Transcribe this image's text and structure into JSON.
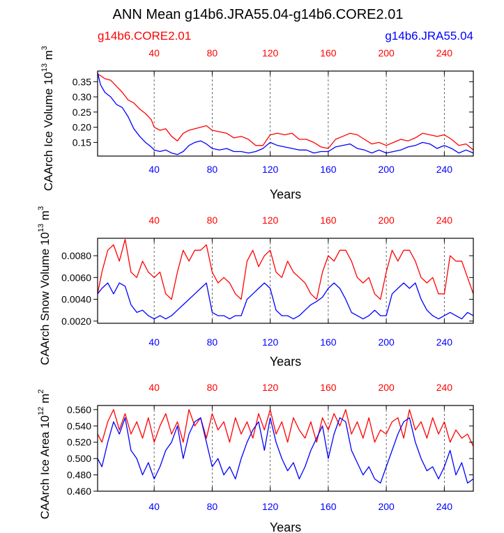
{
  "figure": {
    "title": "ANN Mean g14b6.JRA55.04-g14b6.CORE2.01",
    "legend_left": "g14b6.CORE2.01",
    "legend_right": "g14b6.JRA55.04",
    "color_left": "#ff0000",
    "color_right": "#0000ff"
  },
  "chart_data": [
    {
      "type": "line",
      "id": "ice_volume",
      "title": "ANN Mean g14b6.JRA55.04-g14b6.CORE2.01",
      "xlabel": "Years",
      "ylabel_main": "CAArch Ice Volume 10",
      "ylabel_exp": "13",
      "ylabel_unit": " m",
      "ylabel_unit_exp": "3",
      "xlim": [
        1,
        260
      ],
      "ylim": [
        0.105,
        0.385
      ],
      "xticks": [
        40,
        80,
        120,
        160,
        200,
        240
      ],
      "xtick_labels": [
        "40",
        "80",
        "120",
        "160",
        "200",
        "240"
      ],
      "yticks": [
        0.15,
        0.2,
        0.25,
        0.3,
        0.35
      ],
      "ytick_labels": [
        "0.15",
        "0.20",
        "0.25",
        "0.30",
        "0.35"
      ],
      "vertical_gridlines": [
        40,
        80,
        120,
        160,
        200,
        240
      ],
      "x_anchors": [
        1,
        260
      ],
      "series": [
        {
          "name": "g14b6.CORE2.01",
          "color": "#ff0000",
          "x": [
            1,
            3,
            6,
            10,
            14,
            18,
            22,
            26,
            30,
            34,
            38,
            40,
            44,
            48,
            52,
            56,
            60,
            64,
            68,
            72,
            76,
            80,
            85,
            90,
            95,
            100,
            105,
            110,
            115,
            120,
            125,
            130,
            135,
            140,
            145,
            150,
            155,
            160,
            165,
            170,
            175,
            180,
            185,
            190,
            195,
            200,
            205,
            210,
            215,
            220,
            225,
            230,
            235,
            240,
            245,
            250,
            255,
            260
          ],
          "values": [
            0.375,
            0.37,
            0.36,
            0.355,
            0.335,
            0.315,
            0.29,
            0.28,
            0.26,
            0.245,
            0.225,
            0.2,
            0.19,
            0.195,
            0.17,
            0.155,
            0.18,
            0.19,
            0.195,
            0.2,
            0.205,
            0.19,
            0.185,
            0.18,
            0.165,
            0.17,
            0.16,
            0.14,
            0.14,
            0.175,
            0.18,
            0.175,
            0.18,
            0.16,
            0.16,
            0.15,
            0.135,
            0.13,
            0.16,
            0.17,
            0.18,
            0.175,
            0.16,
            0.145,
            0.15,
            0.14,
            0.15,
            0.16,
            0.155,
            0.165,
            0.18,
            0.175,
            0.17,
            0.175,
            0.16,
            0.14,
            0.145,
            0.125
          ]
        },
        {
          "name": "g14b6.JRA55.04",
          "color": "#0000ff",
          "x": [
            1,
            3,
            6,
            10,
            14,
            18,
            22,
            26,
            30,
            34,
            38,
            40,
            44,
            48,
            52,
            56,
            60,
            64,
            68,
            72,
            76,
            80,
            85,
            90,
            95,
            100,
            105,
            110,
            115,
            120,
            125,
            130,
            135,
            140,
            145,
            150,
            155,
            160,
            165,
            170,
            175,
            180,
            185,
            190,
            195,
            200,
            205,
            210,
            215,
            220,
            225,
            230,
            235,
            240,
            245,
            250,
            255,
            260
          ],
          "values": [
            0.38,
            0.34,
            0.315,
            0.3,
            0.275,
            0.265,
            0.235,
            0.195,
            0.17,
            0.15,
            0.135,
            0.125,
            0.12,
            0.125,
            0.115,
            0.11,
            0.12,
            0.14,
            0.15,
            0.155,
            0.145,
            0.13,
            0.125,
            0.13,
            0.12,
            0.12,
            0.115,
            0.12,
            0.13,
            0.15,
            0.14,
            0.135,
            0.13,
            0.125,
            0.125,
            0.115,
            0.12,
            0.12,
            0.135,
            0.14,
            0.145,
            0.13,
            0.125,
            0.115,
            0.125,
            0.115,
            0.12,
            0.125,
            0.135,
            0.14,
            0.15,
            0.145,
            0.13,
            0.14,
            0.13,
            0.115,
            0.125,
            0.115
          ]
        }
      ]
    },
    {
      "type": "line",
      "id": "snow_volume",
      "xlabel": "Years",
      "ylabel_main": "CAArch Snow Volume 10",
      "ylabel_exp": "13",
      "ylabel_unit": " m",
      "ylabel_unit_exp": "3",
      "xlim": [
        1,
        260
      ],
      "ylim": [
        0.0018,
        0.0096
      ],
      "xticks": [
        40,
        80,
        120,
        160,
        200,
        240
      ],
      "xtick_labels": [
        "40",
        "80",
        "120",
        "160",
        "200",
        "240"
      ],
      "yticks": [
        0.002,
        0.004,
        0.006,
        0.008
      ],
      "ytick_labels": [
        "0.0020",
        "0.0040",
        "0.0060",
        "0.0080"
      ],
      "vertical_gridlines": [
        40,
        80,
        120,
        160,
        200,
        240
      ],
      "x_anchors": [
        1,
        260
      ],
      "series": [
        {
          "name": "g14b6.CORE2.01",
          "color": "#ff0000",
          "x": [
            1,
            4,
            8,
            12,
            16,
            20,
            24,
            28,
            32,
            36,
            40,
            44,
            48,
            52,
            56,
            60,
            64,
            68,
            72,
            76,
            80,
            84,
            88,
            92,
            96,
            100,
            104,
            108,
            112,
            116,
            120,
            124,
            128,
            132,
            136,
            140,
            144,
            148,
            152,
            156,
            160,
            164,
            168,
            172,
            176,
            180,
            184,
            188,
            192,
            196,
            200,
            204,
            208,
            212,
            216,
            220,
            224,
            228,
            232,
            236,
            240,
            244,
            248,
            252,
            256,
            260
          ],
          "values": [
            0.0045,
            0.0065,
            0.0085,
            0.009,
            0.0075,
            0.0095,
            0.0065,
            0.006,
            0.0075,
            0.0065,
            0.006,
            0.0065,
            0.0045,
            0.004,
            0.0065,
            0.0085,
            0.0075,
            0.0085,
            0.0085,
            0.009,
            0.0065,
            0.0055,
            0.006,
            0.0055,
            0.0045,
            0.004,
            0.0075,
            0.0085,
            0.007,
            0.008,
            0.0085,
            0.0065,
            0.006,
            0.0075,
            0.0065,
            0.006,
            0.0055,
            0.0045,
            0.004,
            0.0065,
            0.008,
            0.0075,
            0.0085,
            0.0085,
            0.0075,
            0.006,
            0.0055,
            0.006,
            0.0045,
            0.004,
            0.0065,
            0.0085,
            0.0075,
            0.0085,
            0.0085,
            0.0075,
            0.006,
            0.0055,
            0.006,
            0.0045,
            0.0045,
            0.008,
            0.0075,
            0.0075,
            0.006,
            0.0045
          ]
        },
        {
          "name": "g14b6.JRA55.04",
          "color": "#0000ff",
          "x": [
            1,
            4,
            8,
            12,
            16,
            20,
            24,
            28,
            32,
            36,
            40,
            44,
            48,
            52,
            56,
            60,
            64,
            68,
            72,
            76,
            80,
            84,
            88,
            92,
            96,
            100,
            104,
            108,
            112,
            116,
            120,
            124,
            128,
            132,
            136,
            140,
            144,
            148,
            152,
            156,
            160,
            164,
            168,
            172,
            176,
            180,
            184,
            188,
            192,
            196,
            200,
            204,
            208,
            212,
            216,
            220,
            224,
            228,
            232,
            236,
            240,
            244,
            248,
            252,
            256,
            260
          ],
          "values": [
            0.0045,
            0.005,
            0.0055,
            0.0045,
            0.0055,
            0.0052,
            0.0035,
            0.0028,
            0.003,
            0.0025,
            0.0022,
            0.0025,
            0.0022,
            0.0025,
            0.003,
            0.0035,
            0.004,
            0.0045,
            0.005,
            0.0055,
            0.0028,
            0.0025,
            0.0025,
            0.0022,
            0.0025,
            0.0025,
            0.004,
            0.0045,
            0.005,
            0.0055,
            0.005,
            0.003,
            0.0025,
            0.0025,
            0.0022,
            0.0025,
            0.003,
            0.0035,
            0.0038,
            0.0042,
            0.005,
            0.0055,
            0.005,
            0.004,
            0.0028,
            0.0025,
            0.0022,
            0.0025,
            0.003,
            0.0025,
            0.0025,
            0.0045,
            0.005,
            0.0055,
            0.005,
            0.0055,
            0.004,
            0.003,
            0.0025,
            0.0022,
            0.0025,
            0.0028,
            0.0025,
            0.0022,
            0.0028,
            0.0025
          ]
        }
      ]
    },
    {
      "type": "line",
      "id": "ice_area",
      "xlabel": "Years",
      "ylabel_main": "CAArch Ice Area 10",
      "ylabel_exp": "12",
      "ylabel_unit": " m",
      "ylabel_unit_exp": "2",
      "xlim": [
        1,
        260
      ],
      "ylim": [
        0.46,
        0.565
      ],
      "xticks": [
        40,
        80,
        120,
        160,
        200,
        240
      ],
      "xtick_labels": [
        "40",
        "80",
        "120",
        "160",
        "200",
        "240"
      ],
      "yticks": [
        0.46,
        0.48,
        0.5,
        0.52,
        0.54,
        0.56
      ],
      "ytick_labels": [
        "0.460",
        "0.480",
        "0.500",
        "0.520",
        "0.540",
        "0.560"
      ],
      "vertical_gridlines": [
        40,
        80,
        120,
        160,
        200,
        240
      ],
      "x_anchors": [
        1,
        260
      ],
      "series": [
        {
          "name": "g14b6.CORE2.01",
          "color": "#ff0000",
          "x": [
            1,
            4,
            8,
            12,
            16,
            20,
            24,
            28,
            32,
            36,
            40,
            44,
            48,
            52,
            56,
            60,
            64,
            68,
            72,
            76,
            80,
            84,
            88,
            92,
            96,
            100,
            104,
            108,
            112,
            116,
            120,
            124,
            128,
            132,
            136,
            140,
            144,
            148,
            152,
            156,
            160,
            164,
            168,
            172,
            176,
            180,
            184,
            188,
            192,
            196,
            200,
            204,
            208,
            212,
            216,
            220,
            224,
            228,
            232,
            236,
            240,
            244,
            248,
            252,
            256,
            260
          ],
          "values": [
            0.53,
            0.52,
            0.545,
            0.56,
            0.535,
            0.555,
            0.53,
            0.545,
            0.525,
            0.55,
            0.52,
            0.54,
            0.555,
            0.53,
            0.545,
            0.52,
            0.56,
            0.54,
            0.55,
            0.525,
            0.555,
            0.535,
            0.545,
            0.52,
            0.55,
            0.53,
            0.545,
            0.525,
            0.555,
            0.535,
            0.56,
            0.53,
            0.545,
            0.52,
            0.55,
            0.535,
            0.525,
            0.545,
            0.52,
            0.55,
            0.535,
            0.555,
            0.54,
            0.56,
            0.53,
            0.545,
            0.525,
            0.55,
            0.52,
            0.535,
            0.53,
            0.545,
            0.55,
            0.525,
            0.56,
            0.535,
            0.545,
            0.525,
            0.55,
            0.53,
            0.545,
            0.52,
            0.535,
            0.525,
            0.53,
            0.515
          ]
        },
        {
          "name": "g14b6.JRA55.04",
          "color": "#0000ff",
          "x": [
            1,
            4,
            8,
            12,
            16,
            20,
            24,
            28,
            32,
            36,
            40,
            44,
            48,
            52,
            56,
            60,
            64,
            68,
            72,
            76,
            80,
            84,
            88,
            92,
            96,
            100,
            104,
            108,
            112,
            116,
            120,
            124,
            128,
            132,
            136,
            140,
            144,
            148,
            152,
            156,
            160,
            164,
            168,
            172,
            176,
            180,
            184,
            188,
            192,
            196,
            200,
            204,
            208,
            212,
            216,
            220,
            224,
            228,
            232,
            236,
            240,
            244,
            248,
            252,
            256,
            260
          ],
          "values": [
            0.5,
            0.49,
            0.52,
            0.545,
            0.53,
            0.55,
            0.51,
            0.5,
            0.48,
            0.495,
            0.475,
            0.49,
            0.51,
            0.52,
            0.54,
            0.5,
            0.53,
            0.545,
            0.55,
            0.52,
            0.49,
            0.5,
            0.48,
            0.49,
            0.475,
            0.5,
            0.52,
            0.535,
            0.545,
            0.51,
            0.55,
            0.52,
            0.5,
            0.485,
            0.495,
            0.475,
            0.49,
            0.51,
            0.525,
            0.54,
            0.5,
            0.53,
            0.55,
            0.545,
            0.51,
            0.495,
            0.48,
            0.49,
            0.475,
            0.47,
            0.49,
            0.51,
            0.53,
            0.545,
            0.55,
            0.52,
            0.5,
            0.485,
            0.49,
            0.475,
            0.49,
            0.51,
            0.48,
            0.495,
            0.47,
            0.475
          ]
        }
      ]
    }
  ]
}
